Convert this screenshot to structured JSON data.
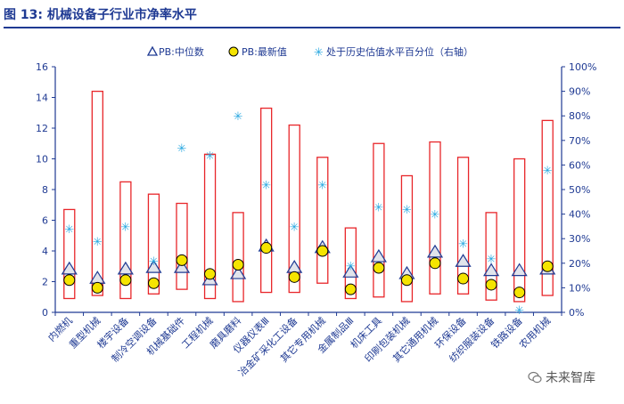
{
  "header": {
    "title": "图 13: 机械设备子行业市净率水平"
  },
  "watermark": {
    "text": "未来智库"
  },
  "colors": {
    "title": "#1f3a93",
    "axis": "#1f3a93",
    "box": "#e8262a",
    "median": "#1f3a93",
    "latest": "#f5e400",
    "percentile": "#29a8e0"
  },
  "chart_data": {
    "type": "box-range",
    "categories": [
      "内燃机",
      "重型机械",
      "楼宇设备",
      "制冷空调设备",
      "机械基础件",
      "工程机械",
      "磨具磨料",
      "仪器仪表Ⅲ",
      "冶金矿采化工设备",
      "其它专用机械",
      "金属制品Ⅲ",
      "机床工具",
      "印刷包装机械",
      "其它通用机械",
      "环保设备",
      "纺织服装设备",
      "铁路设备",
      "农用机械"
    ],
    "legend": {
      "median": "PB:中位数",
      "latest": "PB:最新值",
      "percentile": "处于历史估值水平百分位（右轴）"
    },
    "legend_position": "top",
    "y_left": {
      "min": 0,
      "max": 16,
      "ticks": [
        "0",
        "2",
        "4",
        "6",
        "8",
        "10",
        "12",
        "14",
        "16"
      ]
    },
    "y_right": {
      "min": 0,
      "max": 100,
      "ticks": [
        "0%",
        "10%",
        "20%",
        "30%",
        "40%",
        "50%",
        "60%",
        "70%",
        "80%",
        "90%",
        "100%"
      ]
    },
    "series": {
      "range_high": [
        6.7,
        14.4,
        8.5,
        7.7,
        7.1,
        10.3,
        6.5,
        13.3,
        12.2,
        10.1,
        5.5,
        11.0,
        8.9,
        11.1,
        10.1,
        6.5,
        10.0,
        12.5
      ],
      "range_low": [
        0.9,
        1.1,
        0.9,
        1.2,
        1.5,
        0.9,
        0.7,
        1.3,
        1.3,
        1.9,
        0.9,
        1.0,
        0.7,
        1.2,
        1.2,
        0.8,
        0.7,
        1.1
      ],
      "median": [
        2.5,
        1.9,
        2.5,
        2.6,
        2.6,
        1.8,
        2.2,
        4.0,
        2.6,
        3.9,
        2.3,
        3.3,
        2.2,
        3.6,
        3.0,
        2.4,
        2.4,
        2.5
      ],
      "latest": [
        2.1,
        1.6,
        2.1,
        1.9,
        3.4,
        2.5,
        3.1,
        4.2,
        2.3,
        4.0,
        1.5,
        2.9,
        2.1,
        3.2,
        2.2,
        1.8,
        1.3,
        3.0
      ],
      "percentile": [
        34,
        29,
        35,
        21,
        67,
        64,
        80,
        52,
        35,
        52,
        19,
        43,
        42,
        40,
        28,
        22,
        1,
        58
      ]
    }
  }
}
